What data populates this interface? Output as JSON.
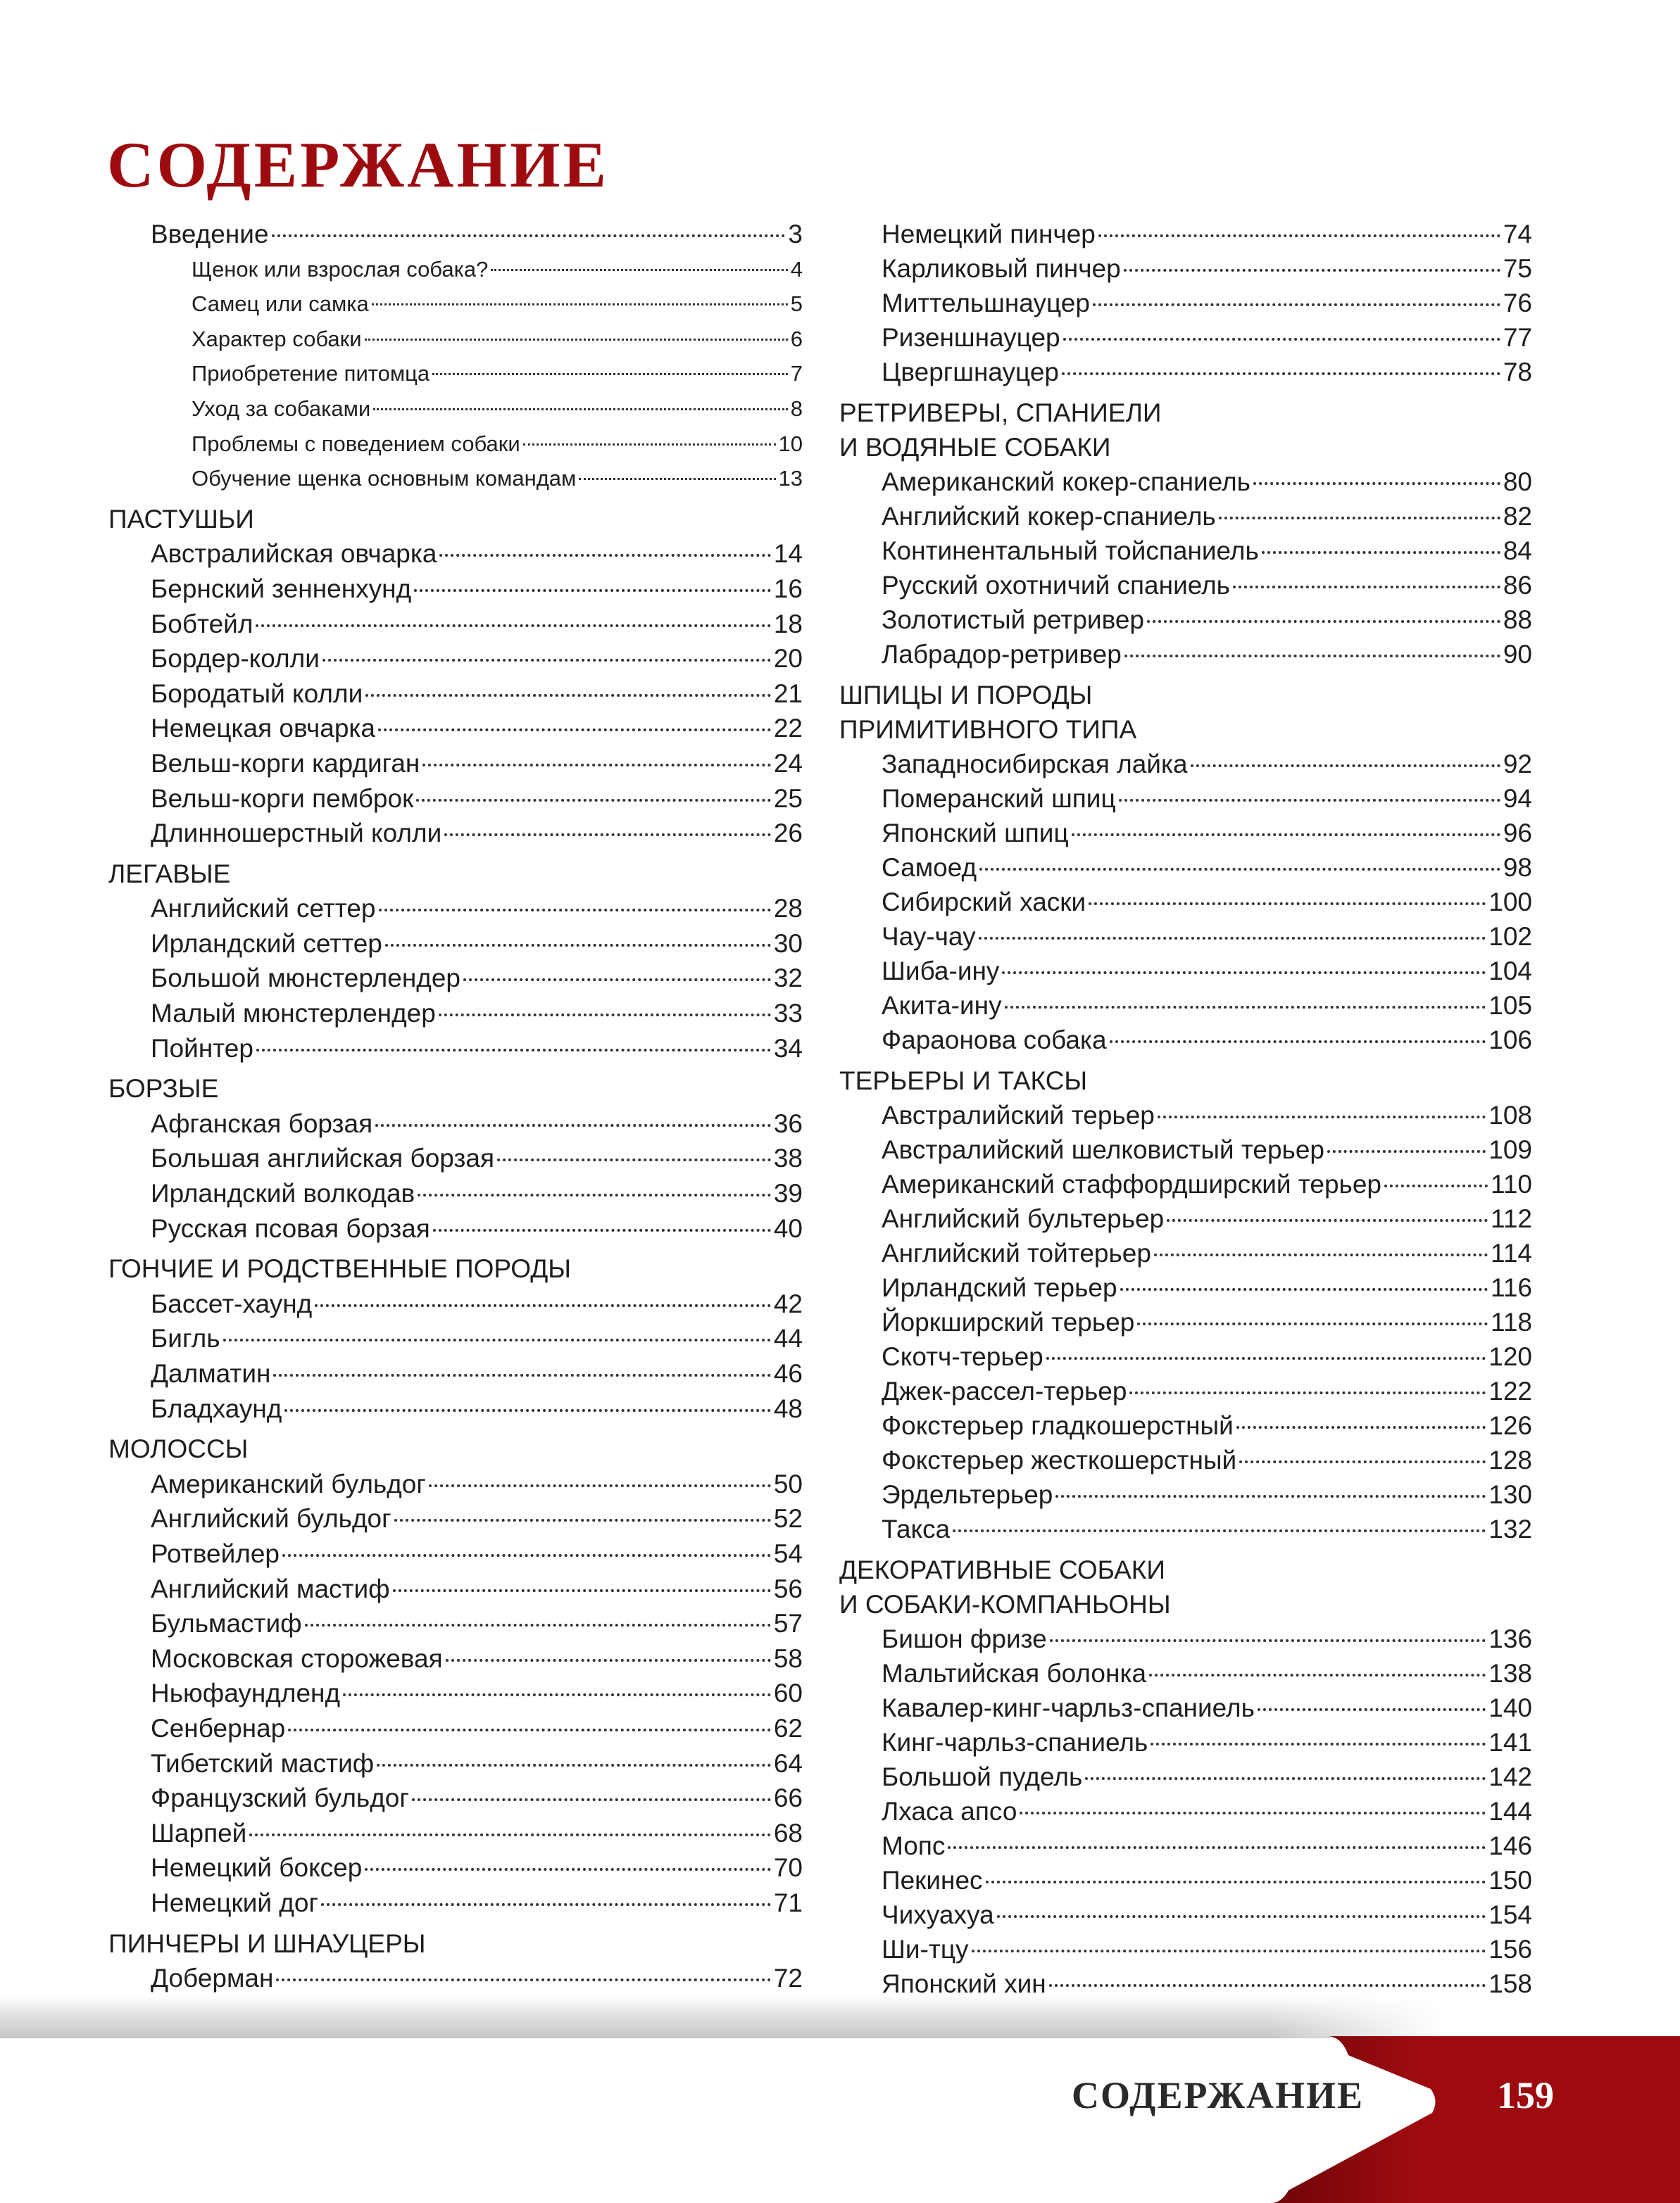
{
  "title": "СОДЕРЖАНИЕ",
  "footer": {
    "label": "СОДЕРЖАНИЕ",
    "page_number": "159",
    "accent_color": "#9e0b0f"
  },
  "left_column": [
    {
      "kind": "item",
      "label": "Введение",
      "page": "3"
    },
    {
      "kind": "sub",
      "label": "Щенок или взрослая собака?",
      "page": "4"
    },
    {
      "kind": "sub",
      "label": "Самец или самка",
      "page": "5"
    },
    {
      "kind": "sub",
      "label": "Характер собаки",
      "page": "6"
    },
    {
      "kind": "sub",
      "label": "Приобретение питомца",
      "page": "7"
    },
    {
      "kind": "sub",
      "label": "Уход за собаками",
      "page": "8"
    },
    {
      "kind": "sub",
      "label": "Проблемы с поведением собаки",
      "page": "10"
    },
    {
      "kind": "sub",
      "label": "Обучение щенка основным командам",
      "page": "13"
    },
    {
      "kind": "heading",
      "lines": [
        "ПАСТУШЬИ"
      ]
    },
    {
      "kind": "item",
      "label": "Австралийская овчарка",
      "page": "14"
    },
    {
      "kind": "item",
      "label": "Бернский зенненхунд",
      "page": "16"
    },
    {
      "kind": "item",
      "label": "Бобтейл",
      "page": "18"
    },
    {
      "kind": "item",
      "label": "Бордер-колли",
      "page": "20"
    },
    {
      "kind": "item",
      "label": "Бородатый колли",
      "page": "21"
    },
    {
      "kind": "item",
      "label": "Немецкая овчарка",
      "page": "22"
    },
    {
      "kind": "item",
      "label": "Вельш-корги кардиган",
      "page": "24"
    },
    {
      "kind": "item",
      "label": "Вельш-корги пемброк",
      "page": "25"
    },
    {
      "kind": "item",
      "label": "Длинношерстный колли",
      "page": "26"
    },
    {
      "kind": "heading",
      "lines": [
        "ЛЕГАВЫЕ"
      ]
    },
    {
      "kind": "item",
      "label": "Английский сеттер",
      "page": "28"
    },
    {
      "kind": "item",
      "label": "Ирландский сеттер",
      "page": "30"
    },
    {
      "kind": "item",
      "label": "Большой мюнстерлендер",
      "page": "32"
    },
    {
      "kind": "item",
      "label": "Малый мюнстерлендер",
      "page": "33"
    },
    {
      "kind": "item",
      "label": "Пойнтер",
      "page": "34"
    },
    {
      "kind": "heading",
      "lines": [
        "БОРЗЫЕ"
      ]
    },
    {
      "kind": "item",
      "label": "Афганская борзая",
      "page": "36"
    },
    {
      "kind": "item",
      "label": "Большая английская борзая",
      "page": "38"
    },
    {
      "kind": "item",
      "label": "Ирландский волкодав",
      "page": "39"
    },
    {
      "kind": "item",
      "label": "Русская псовая борзая",
      "page": "40"
    },
    {
      "kind": "heading",
      "lines": [
        "ГОНЧИЕ И РОДСТВЕННЫЕ ПОРОДЫ"
      ]
    },
    {
      "kind": "item",
      "label": "Бассет-хаунд",
      "page": "42"
    },
    {
      "kind": "item",
      "label": "Бигль",
      "page": "44"
    },
    {
      "kind": "item",
      "label": "Далматин",
      "page": "46"
    },
    {
      "kind": "item",
      "label": "Бладхаунд",
      "page": "48"
    },
    {
      "kind": "heading",
      "lines": [
        "МОЛОССЫ"
      ]
    },
    {
      "kind": "item",
      "label": "Американский бульдог",
      "page": "50"
    },
    {
      "kind": "item",
      "label": "Английский бульдог",
      "page": "52"
    },
    {
      "kind": "item",
      "label": "Ротвейлер",
      "page": "54"
    },
    {
      "kind": "item",
      "label": "Английский мастиф",
      "page": "56"
    },
    {
      "kind": "item",
      "label": "Бульмастиф",
      "page": "57"
    },
    {
      "kind": "item",
      "label": "Московская сторожевая",
      "page": "58"
    },
    {
      "kind": "item",
      "label": "Ньюфаундленд",
      "page": "60"
    },
    {
      "kind": "item",
      "label": "Сенбернар",
      "page": "62"
    },
    {
      "kind": "item",
      "label": "Тибетский мастиф",
      "page": "64"
    },
    {
      "kind": "item",
      "label": "Французский бульдог",
      "page": "66"
    },
    {
      "kind": "item",
      "label": "Шарпей",
      "page": "68"
    },
    {
      "kind": "item",
      "label": "Немецкий боксер",
      "page": "70"
    },
    {
      "kind": "item",
      "label": "Немецкий дог",
      "page": "71"
    },
    {
      "kind": "heading",
      "lines": [
        "ПИНЧЕРЫ И ШНАУЦЕРЫ"
      ]
    },
    {
      "kind": "item",
      "label": "Доберман",
      "page": "72"
    }
  ],
  "right_column": [
    {
      "kind": "item",
      "label": "Немецкий пинчер",
      "page": "74"
    },
    {
      "kind": "item",
      "label": "Карликовый пинчер",
      "page": "75"
    },
    {
      "kind": "item",
      "label": "Миттельшнауцер",
      "page": "76"
    },
    {
      "kind": "item",
      "label": "Ризеншнауцер",
      "page": "77"
    },
    {
      "kind": "item",
      "label": "Цвергшнауцер",
      "page": "78"
    },
    {
      "kind": "heading",
      "lines": [
        "РЕТРИВЕРЫ, СПАНИЕЛИ",
        "И ВОДЯНЫЕ СОБАКИ"
      ]
    },
    {
      "kind": "item",
      "label": "Американский кокер-спаниель",
      "page": "80"
    },
    {
      "kind": "item",
      "label": "Английский кокер-спаниель",
      "page": "82"
    },
    {
      "kind": "item",
      "label": "Континентальный тойспаниель",
      "page": "84"
    },
    {
      "kind": "item",
      "label": "Русский охотничий спаниель",
      "page": "86"
    },
    {
      "kind": "item",
      "label": "Золотистый ретривер",
      "page": "88"
    },
    {
      "kind": "item",
      "label": "Лабрадор-ретривер",
      "page": "90"
    },
    {
      "kind": "heading",
      "lines": [
        "ШПИЦЫ И ПОРОДЫ",
        "ПРИМИТИВНОГО ТИПА"
      ]
    },
    {
      "kind": "item",
      "label": "Западносибирская лайка",
      "page": "92"
    },
    {
      "kind": "item",
      "label": "Померанский шпиц",
      "page": "94"
    },
    {
      "kind": "item",
      "label": "Японский шпиц",
      "page": "96"
    },
    {
      "kind": "item",
      "label": "Самоед",
      "page": "98"
    },
    {
      "kind": "item",
      "label": "Сибирский хаски",
      "page": "100"
    },
    {
      "kind": "item",
      "label": "Чау-чау",
      "page": "102"
    },
    {
      "kind": "item",
      "label": "Шиба-ину",
      "page": "104"
    },
    {
      "kind": "item",
      "label": "Акита-ину",
      "page": "105"
    },
    {
      "kind": "item",
      "label": "Фараонова собака",
      "page": "106"
    },
    {
      "kind": "heading",
      "lines": [
        "ТЕРЬЕРЫ И ТАКСЫ"
      ]
    },
    {
      "kind": "item",
      "label": "Австралийский терьер",
      "page": "108"
    },
    {
      "kind": "item",
      "label": "Австралийский шелковистый терьер",
      "page": "109"
    },
    {
      "kind": "item",
      "label": "Американский стаффордширский терьер",
      "page": "110"
    },
    {
      "kind": "item",
      "label": "Английский бультерьер",
      "page": "112"
    },
    {
      "kind": "item",
      "label": "Английский тойтерьер",
      "page": "114"
    },
    {
      "kind": "item",
      "label": "Ирландский терьер",
      "page": "116"
    },
    {
      "kind": "item",
      "label": "Йоркширский терьер",
      "page": "118"
    },
    {
      "kind": "item",
      "label": "Скотч-терьер",
      "page": "120"
    },
    {
      "kind": "item",
      "label": "Джек-рассел-терьер",
      "page": "122"
    },
    {
      "kind": "item",
      "label": "Фокстерьер гладкошерстный",
      "page": "126"
    },
    {
      "kind": "item",
      "label": "Фокстерьер жесткошерстный",
      "page": "128"
    },
    {
      "kind": "item",
      "label": "Эрдельтерьер",
      "page": "130"
    },
    {
      "kind": "item",
      "label": "Такса",
      "page": "132"
    },
    {
      "kind": "heading",
      "lines": [
        "ДЕКОРАТИВНЫЕ СОБАКИ",
        "И СОБАКИ-КОМПАНЬОНЫ"
      ]
    },
    {
      "kind": "item",
      "label": "Бишон фризе",
      "page": "136"
    },
    {
      "kind": "item",
      "label": "Мальтийская болонка",
      "page": "138"
    },
    {
      "kind": "item",
      "label": "Кавалер-кинг-чарльз-спаниель",
      "page": "140"
    },
    {
      "kind": "item",
      "label": "Кинг-чарльз-спаниель",
      "page": "141"
    },
    {
      "kind": "item",
      "label": "Большой пудель",
      "page": "142"
    },
    {
      "kind": "item",
      "label": "Лхаса апсо",
      "page": "144"
    },
    {
      "kind": "item",
      "label": "Мопс",
      "page": "146"
    },
    {
      "kind": "item",
      "label": "Пекинес",
      "page": "150"
    },
    {
      "kind": "item",
      "label": "Чихуахуа",
      "page": "154"
    },
    {
      "kind": "item",
      "label": "Ши-тцу",
      "page": "156"
    },
    {
      "kind": "item",
      "label": "Японский хин",
      "page": "158"
    }
  ]
}
